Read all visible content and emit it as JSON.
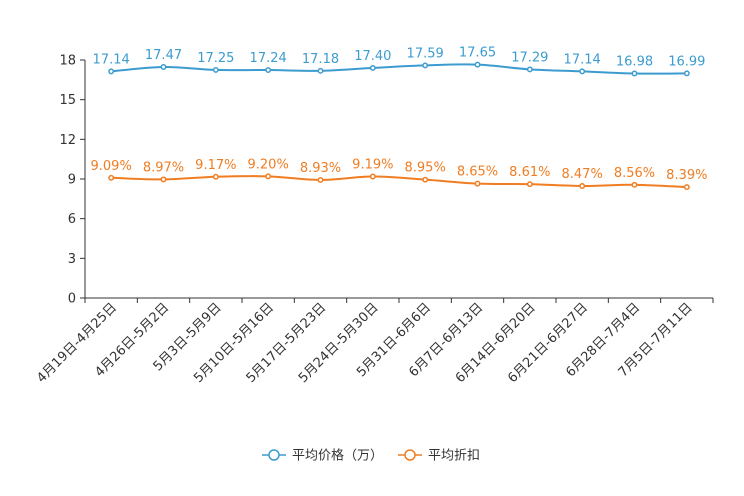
{
  "chart_data": {
    "type": "line",
    "title": "",
    "xlabel": "",
    "ylabel": "",
    "ylim": [
      0,
      18
    ],
    "yticks": [
      0,
      3,
      6,
      9,
      12,
      15,
      18
    ],
    "grid": false,
    "legend_position": "bottom",
    "categories": [
      "4月19日-4月25日",
      "4月26日-5月2日",
      "5月3日-5月9日",
      "5月10日-5月16日",
      "5月17日-5月23日",
      "5月24日-5月30日",
      "5月31日-6月6日",
      "6月7日-6月13日",
      "6月14日-6月20日",
      "6月21日-6月27日",
      "6月28日-7月4日",
      "7月5日-7月11日"
    ],
    "series": [
      {
        "name": "平均价格（万）",
        "color": "#3c9ccf",
        "values": [
          17.14,
          17.47,
          17.25,
          17.24,
          17.18,
          17.4,
          17.59,
          17.65,
          17.29,
          17.14,
          16.98,
          16.99
        ],
        "labels": [
          "17.14",
          "17.47",
          "17.25",
          "17.24",
          "17.18",
          "17.40",
          "17.59",
          "17.65",
          "17.29",
          "17.14",
          "16.98",
          "16.99"
        ]
      },
      {
        "name": "平均折扣",
        "color": "#f07d22",
        "values": [
          9.09,
          8.97,
          9.17,
          9.2,
          8.93,
          9.19,
          8.95,
          8.65,
          8.61,
          8.47,
          8.56,
          8.39
        ],
        "labels": [
          "9.09%",
          "8.97%",
          "9.17%",
          "9.20%",
          "8.93%",
          "9.19%",
          "8.95%",
          "8.65%",
          "8.61%",
          "8.47%",
          "8.56%",
          "8.39%"
        ]
      }
    ]
  }
}
